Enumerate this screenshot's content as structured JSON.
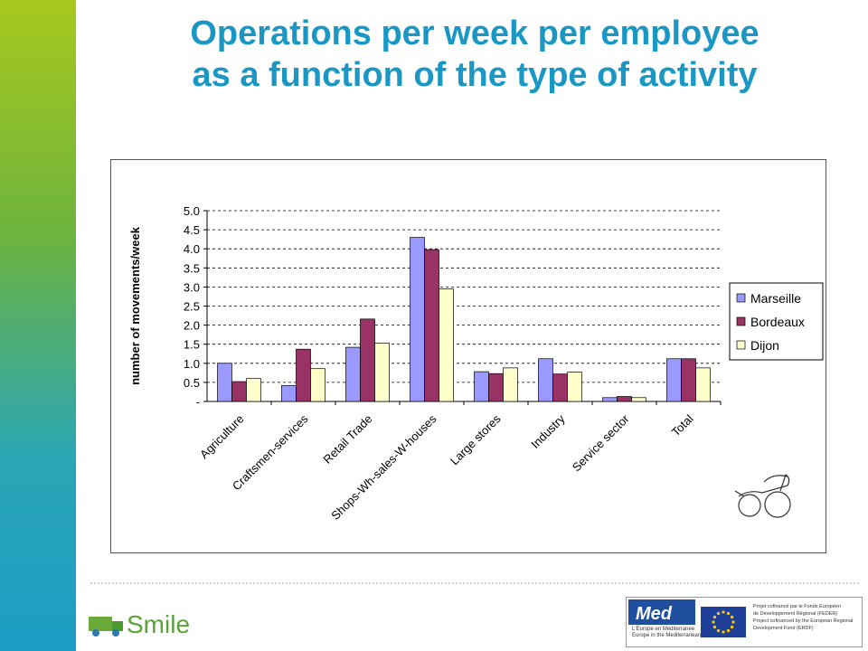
{
  "slide": {
    "title_line1": "Operations per week per employee",
    "title_line2": "as a function of the type of activity"
  },
  "footer": {
    "smile_logo_text": "Smile",
    "med_logo_text": "Med",
    "med_line1": "L'Europe en Méditerranée",
    "med_line2": "Europe in the Mediterranean",
    "feder_lines": [
      "Projet cofinancé par le Fonds Européen",
      "de Développement Régional (FEDER)",
      "Project cofinanced by the European Regional",
      "Development Fund (ERDF)"
    ]
  },
  "colors": {
    "title": "#1b97c4",
    "marseille": "#9999ff",
    "bordeaux": "#993366",
    "dijon": "#ffffcc"
  },
  "chart_data": {
    "type": "bar",
    "ylabel": "number of movements/week",
    "xlabel": "",
    "ylim": [
      0,
      5
    ],
    "yticks": [
      "-",
      "0.5",
      "1.0",
      "1.5",
      "2.0",
      "2.5",
      "3.0",
      "3.5",
      "4.0",
      "4.5",
      "5.0"
    ],
    "grid": "dashed horizontal",
    "legend_position": "right",
    "categories": [
      "Agriculture",
      "Craftsmen-services",
      "Retail Trade",
      "Shops-Wh-sales-W-houses",
      "Large stores",
      "Industry",
      "Service sector",
      "Total"
    ],
    "series": [
      {
        "name": "Marseille",
        "values": [
          1.0,
          0.42,
          1.42,
          4.3,
          0.78,
          1.12,
          0.1,
          1.12
        ]
      },
      {
        "name": "Bordeaux",
        "values": [
          0.52,
          1.37,
          2.16,
          3.98,
          0.73,
          0.72,
          0.13,
          1.12
        ]
      },
      {
        "name": "Dijon",
        "values": [
          0.6,
          0.86,
          1.53,
          2.95,
          0.88,
          0.77,
          0.1,
          0.88
        ]
      }
    ]
  }
}
